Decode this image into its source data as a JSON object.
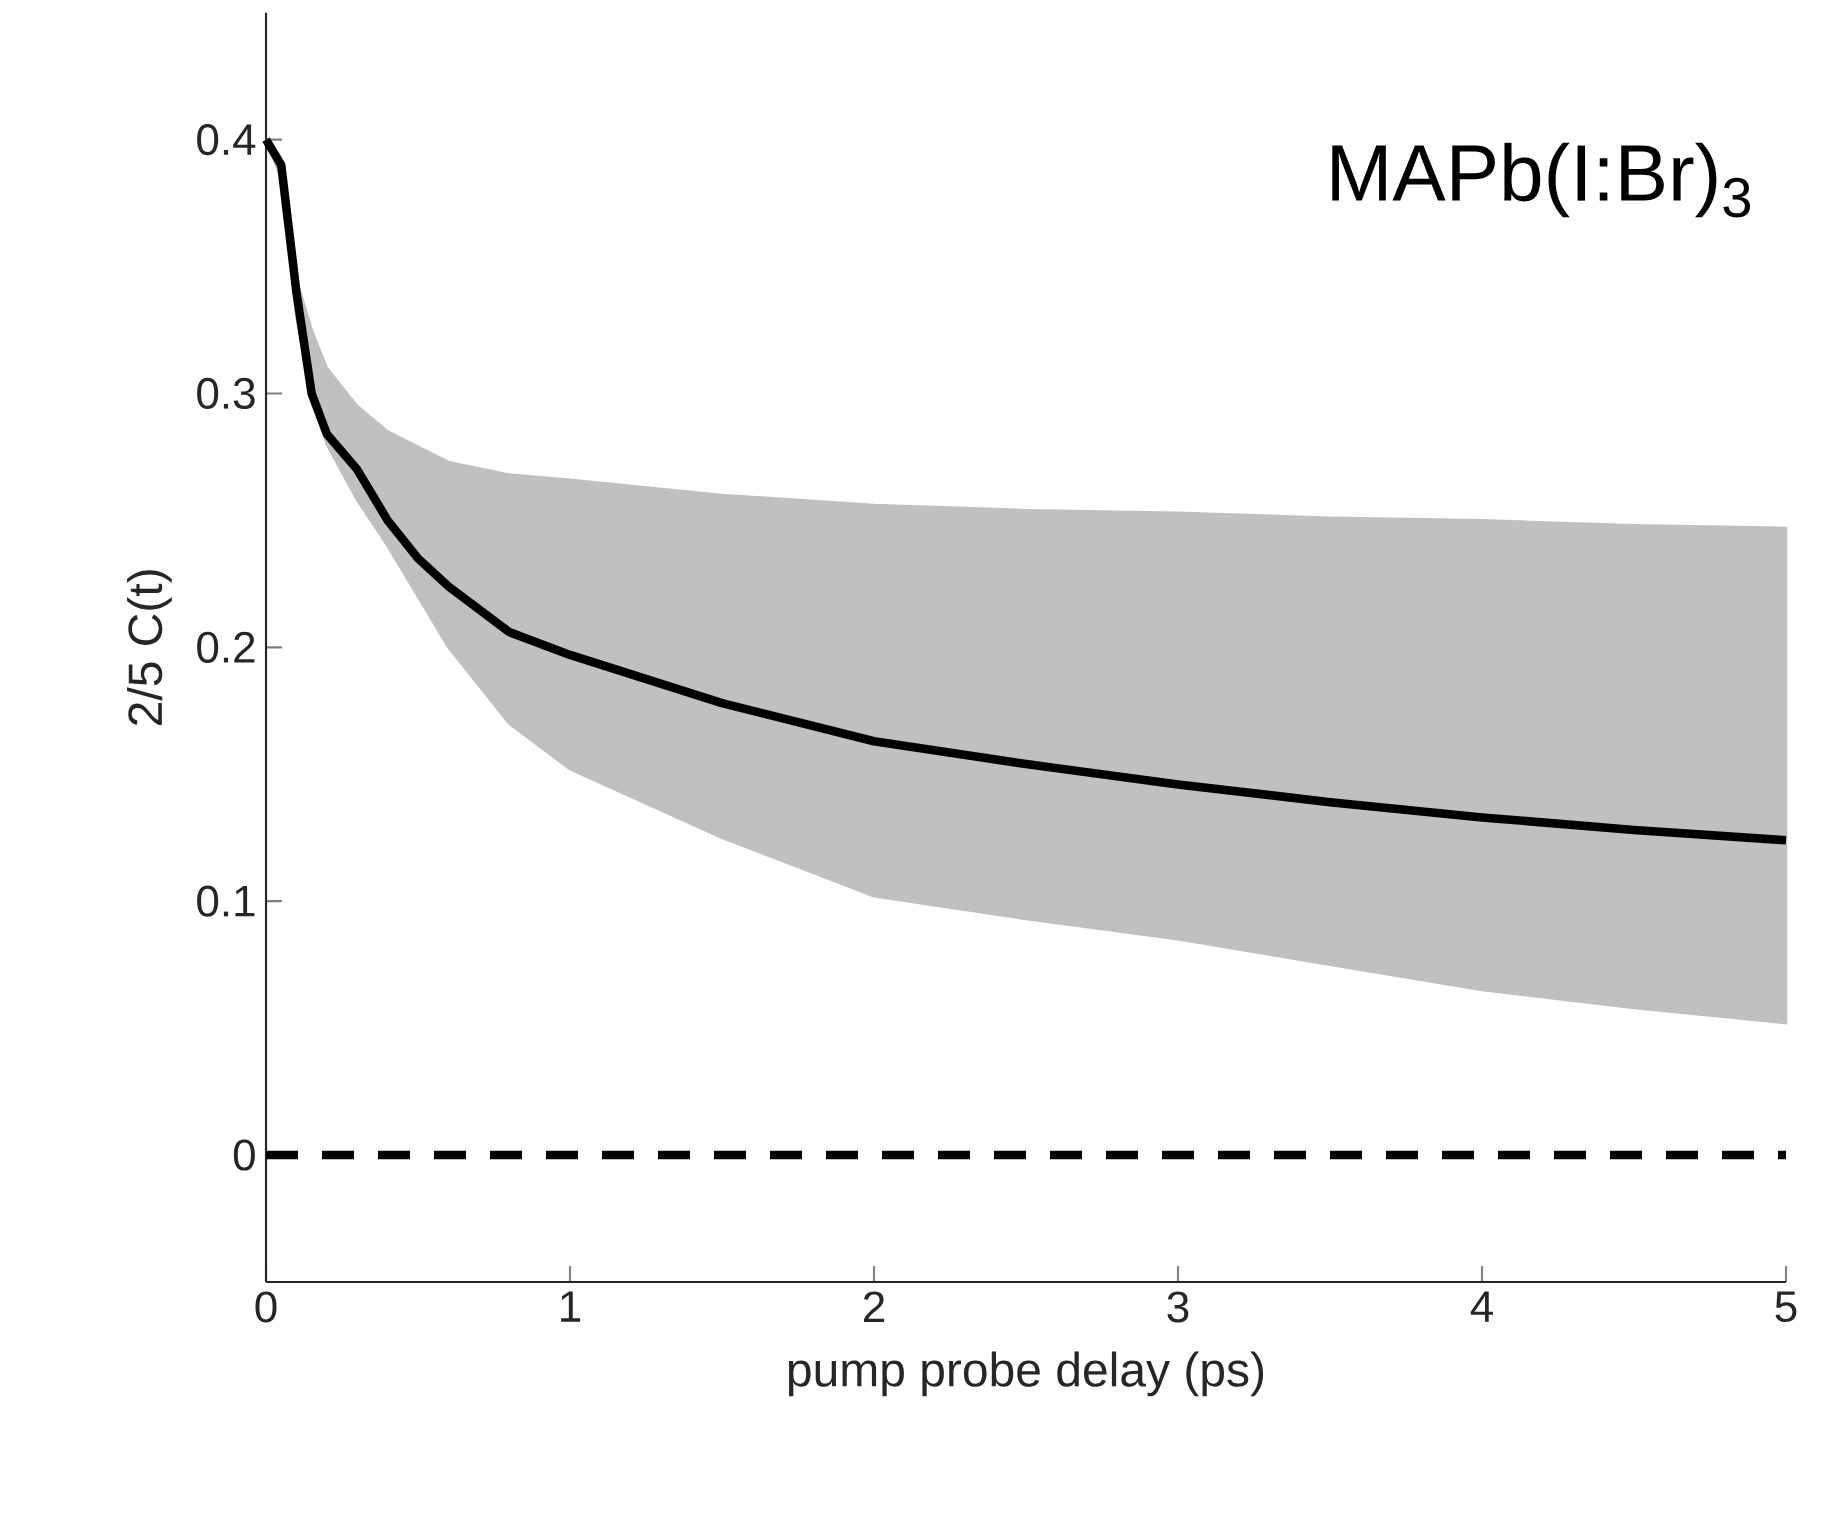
{
  "chart_data": {
    "type": "line",
    "xlabel": "pump probe delay (ps)",
    "ylabel": "2/5 C(t)",
    "annotations": [
      "MAPb(I:Br)$_{3}$"
    ],
    "x": [
      0,
      0.05,
      0.1,
      0.15,
      0.2,
      0.3,
      0.4,
      0.5,
      0.6,
      0.8,
      1,
      1.5,
      2,
      2.5,
      3,
      3.5,
      4,
      4.5,
      5
    ],
    "series": [
      {
        "color": "#000000",
        "values": [
          0.4,
          0.39,
          0.34,
          0.3,
          0.284,
          0.27,
          0.25,
          0.235,
          0.224,
          0.206,
          0.197,
          0.178,
          0.163,
          0.154,
          0.146,
          0.139,
          0.133,
          0.128,
          0.124
        ],
        "upper": [
          0.4,
          0.39,
          0.345,
          0.325,
          0.31,
          0.295,
          0.285,
          0.279,
          0.273,
          0.268,
          0.266,
          0.26,
          0.256,
          0.254,
          0.253,
          0.251,
          0.25,
          0.248,
          0.247
        ],
        "lower": [
          0.4,
          0.385,
          0.33,
          0.3,
          0.28,
          0.258,
          0.24,
          0.22,
          0.2,
          0.17,
          0.152,
          0.125,
          0.102,
          0.093,
          0.085,
          0.075,
          0.065,
          0.058,
          0.052
        ]
      }
    ],
    "xlim": [
      0,
      5
    ],
    "ylim": [
      -0.05,
      0.45
    ],
    "xticks": [
      0,
      1,
      2,
      3,
      4,
      5
    ],
    "yticks": [
      0,
      0.1,
      0.2,
      0.3,
      0.4
    ],
    "ref_lines": [
      {
        "axis": "y",
        "value": 0,
        "color": "#000000",
        "line_style": "dashed"
      }
    ]
  }
}
